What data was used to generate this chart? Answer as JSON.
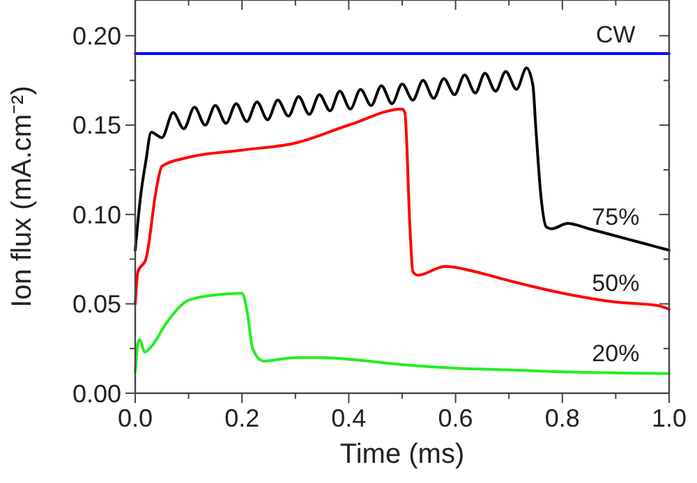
{
  "chart_data": {
    "type": "line",
    "xlabel": "Time (ms)",
    "ylabel": "Ion flux (mA.cm⁻²)",
    "xlim": [
      0,
      1.0
    ],
    "ylim": [
      0,
      0.22
    ],
    "xticks": [
      {
        "value": 0,
        "label": "0.0"
      },
      {
        "value": 0.1,
        "label": null
      },
      {
        "value": 0.2,
        "label": "0.2"
      },
      {
        "value": 0.3,
        "label": null
      },
      {
        "value": 0.4,
        "label": "0.4"
      },
      {
        "value": 0.5,
        "label": null
      },
      {
        "value": 0.6,
        "label": "0.6"
      },
      {
        "value": 0.7,
        "label": null
      },
      {
        "value": 0.8,
        "label": "0.8"
      },
      {
        "value": 0.9,
        "label": null
      },
      {
        "value": 1.0,
        "label": "1.0"
      }
    ],
    "yticks": [
      {
        "value": 0,
        "label": "0.00"
      },
      {
        "value": 0.025,
        "label": null
      },
      {
        "value": 0.05,
        "label": "0.05"
      },
      {
        "value": 0.075,
        "label": null
      },
      {
        "value": 0.1,
        "label": "0.10"
      },
      {
        "value": 0.125,
        "label": null
      },
      {
        "value": 0.15,
        "label": "0.15"
      },
      {
        "value": 0.175,
        "label": null
      },
      {
        "value": 0.2,
        "label": "0.20"
      }
    ],
    "grid": false,
    "marker": "none",
    "line_style": "solid",
    "series": [
      {
        "name": "CW",
        "color": "#0000ff",
        "x": [
          0,
          1.0
        ],
        "values": [
          0.19,
          0.19
        ]
      },
      {
        "name": "75%",
        "color": "#000000",
        "x": [
          0,
          0.01,
          0.02,
          0.03,
          0.05,
          0.071,
          0.091,
          0.111,
          0.131,
          0.15,
          0.17,
          0.189,
          0.209,
          0.228,
          0.248,
          0.267,
          0.287,
          0.306,
          0.326,
          0.345,
          0.365,
          0.383,
          0.403,
          0.422,
          0.442,
          0.461,
          0.481,
          0.5,
          0.52,
          0.539,
          0.559,
          0.578,
          0.598,
          0.617,
          0.637,
          0.655,
          0.675,
          0.694,
          0.714,
          0.733,
          0.745,
          0.75,
          0.76,
          0.77,
          0.78,
          0.81,
          0.85,
          0.9,
          0.95,
          1.0
        ],
        "values": [
          0.08,
          0.11,
          0.13,
          0.146,
          0.143,
          0.157,
          0.148,
          0.16,
          0.15,
          0.161,
          0.151,
          0.162,
          0.152,
          0.163,
          0.153,
          0.164,
          0.155,
          0.166,
          0.156,
          0.167,
          0.158,
          0.169,
          0.159,
          0.17,
          0.161,
          0.172,
          0.162,
          0.173,
          0.164,
          0.175,
          0.165,
          0.176,
          0.167,
          0.178,
          0.168,
          0.179,
          0.169,
          0.18,
          0.17,
          0.182,
          0.172,
          0.15,
          0.11,
          0.093,
          0.092,
          0.095,
          0.092,
          0.088,
          0.084,
          0.08
        ]
      },
      {
        "name": "50%",
        "color": "#ff0000",
        "x": [
          0,
          0.005,
          0.02,
          0.04,
          0.05,
          0.1,
          0.2,
          0.3,
          0.4,
          0.5,
          0.505,
          0.515,
          0.52,
          0.53,
          0.58,
          0.65,
          0.7,
          0.8,
          0.9,
          0.98,
          1.0
        ],
        "values": [
          0.05,
          0.068,
          0.075,
          0.115,
          0.127,
          0.132,
          0.136,
          0.14,
          0.15,
          0.159,
          0.157,
          0.09,
          0.068,
          0.066,
          0.071,
          0.067,
          0.063,
          0.056,
          0.051,
          0.049,
          0.047
        ]
      },
      {
        "name": "20%",
        "color": "#22ee22",
        "x": [
          0,
          0.005,
          0.008,
          0.018,
          0.03,
          0.06,
          0.1,
          0.15,
          0.2,
          0.21,
          0.22,
          0.24,
          0.3,
          0.35,
          0.4,
          0.5,
          0.6,
          0.7,
          0.8,
          1.0
        ],
        "values": [
          0.012,
          0.028,
          0.03,
          0.023,
          0.026,
          0.04,
          0.052,
          0.055,
          0.056,
          0.045,
          0.025,
          0.018,
          0.02,
          0.02,
          0.019,
          0.016,
          0.014,
          0.013,
          0.012,
          0.011
        ]
      }
    ]
  }
}
